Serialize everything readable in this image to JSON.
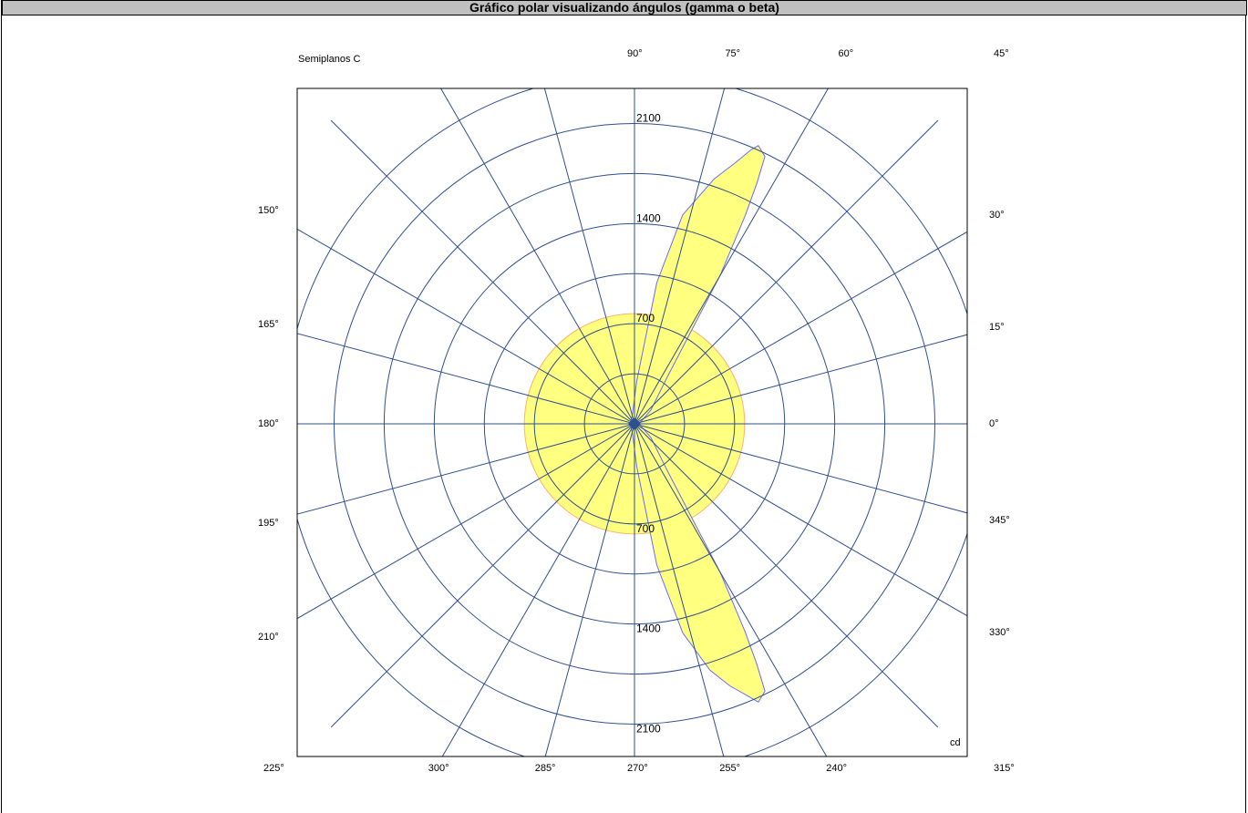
{
  "title": "Gráfico polar visualizando ángulos (gamma o beta)",
  "legend_label": "Semiplanos C",
  "unit_label": "cd",
  "colors": {
    "grid": "#2f4f8f",
    "fill": "#ffff80",
    "circle_outline": "#ffb070",
    "lobe_outline": "#6a6aff",
    "frame": "#000000"
  },
  "chart_data": {
    "type": "polar",
    "rmax": 2400,
    "rings": [
      350,
      700,
      1050,
      1400,
      1750,
      2100,
      2450
    ],
    "ring_labels": [
      {
        "value": 2100,
        "text": "2100",
        "side": "top"
      },
      {
        "value": 1400,
        "text": "1400",
        "side": "top"
      },
      {
        "value": 700,
        "text": "700",
        "side": "top"
      },
      {
        "value": 700,
        "text": "700",
        "side": "bottom"
      },
      {
        "value": 1400,
        "text": "1400",
        "side": "bottom"
      },
      {
        "value": 2100,
        "text": "2100",
        "side": "bottom"
      }
    ],
    "spoke_step_deg": 15,
    "angle_labels": [
      {
        "text": "90°",
        "pos": "top",
        "angle": 90
      },
      {
        "text": "75°",
        "pos": "top",
        "angle": 75
      },
      {
        "text": "60°",
        "pos": "top",
        "angle": 60
      },
      {
        "text": "45°",
        "pos": "corner-tr",
        "angle": 45
      },
      {
        "text": "30°",
        "pos": "right",
        "angle": 30
      },
      {
        "text": "15°",
        "pos": "right",
        "angle": 15
      },
      {
        "text": "0°",
        "pos": "right",
        "angle": 0
      },
      {
        "text": "345°",
        "pos": "right",
        "angle": 345
      },
      {
        "text": "330°",
        "pos": "right",
        "angle": 330
      },
      {
        "text": "315°",
        "pos": "corner-br",
        "angle": 315
      },
      {
        "text": "300°",
        "pos": "bottom",
        "angle": 300
      },
      {
        "text": "285°",
        "pos": "bottom",
        "angle": 285
      },
      {
        "text": "270°",
        "pos": "bottom",
        "angle": 270
      },
      {
        "text": "255°",
        "pos": "bottom",
        "angle": 255
      },
      {
        "text": "240°",
        "pos": "bottom",
        "angle": 240
      },
      {
        "text": "225°",
        "pos": "corner-bl",
        "angle": 225
      },
      {
        "text": "210°",
        "pos": "left",
        "angle": 210
      },
      {
        "text": "195°",
        "pos": "left",
        "angle": 195
      },
      {
        "text": "180°",
        "pos": "left",
        "angle": 180
      },
      {
        "text": "165°",
        "pos": "left",
        "angle": 165
      },
      {
        "text": "150°",
        "pos": "left",
        "angle": 150
      }
    ],
    "series": [
      {
        "shape": "circle",
        "radius": 770
      },
      {
        "shape": "lobe",
        "points": [
          {
            "a": 72,
            "r": 1800
          },
          {
            "a": 69,
            "r": 1950
          },
          {
            "a": 67,
            "r": 2080
          },
          {
            "a": 66,
            "r": 2130
          },
          {
            "a": 64,
            "r": 2080
          },
          {
            "a": 63,
            "r": 1880
          },
          {
            "a": 62,
            "r": 1650
          },
          {
            "a": 60,
            "r": 1200
          },
          {
            "a": 55,
            "r": 400
          },
          {
            "a": 40,
            "r": 150
          },
          {
            "a": 20,
            "r": 50
          },
          {
            "a": 0,
            "r": 20
          },
          {
            "a": 340,
            "r": 50
          },
          {
            "a": 320,
            "r": 150
          },
          {
            "a": 305,
            "r": 400
          },
          {
            "a": 300,
            "r": 1200
          },
          {
            "a": 298,
            "r": 1650
          },
          {
            "a": 297,
            "r": 1880
          },
          {
            "a": 296,
            "r": 2080
          },
          {
            "a": 294,
            "r": 2130
          },
          {
            "a": 293,
            "r": 2080
          },
          {
            "a": 290,
            "r": 1950
          },
          {
            "a": 287,
            "r": 1800
          },
          {
            "a": 283,
            "r": 1500
          },
          {
            "a": 279,
            "r": 1000
          },
          {
            "a": 273,
            "r": 300
          },
          {
            "a": 255,
            "r": 60
          },
          {
            "a": 200,
            "r": 30
          },
          {
            "a": 180,
            "r": 40
          },
          {
            "a": 160,
            "r": 30
          },
          {
            "a": 105,
            "r": 60
          },
          {
            "a": 87,
            "r": 300
          },
          {
            "a": 81,
            "r": 1000
          },
          {
            "a": 77,
            "r": 1500
          }
        ]
      }
    ]
  }
}
